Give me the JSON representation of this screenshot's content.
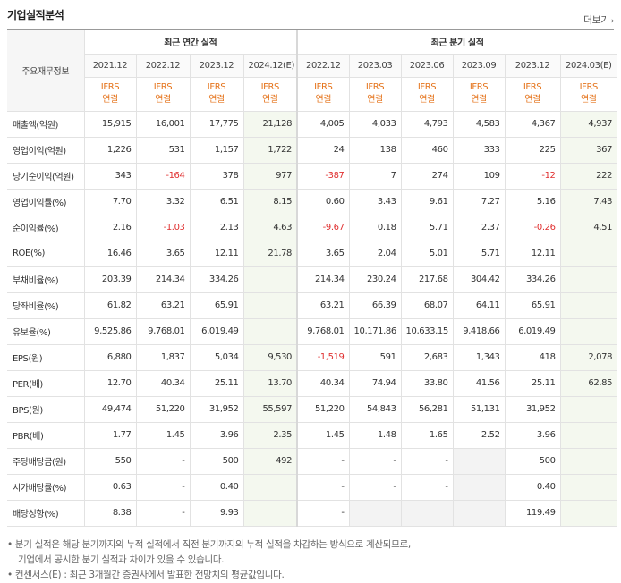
{
  "header": {
    "title": "기업실적분석",
    "more_label": "더보기",
    "more_arrow": "›"
  },
  "table": {
    "row_header_label": "주요재무정보",
    "annual_group": "최근 연간 실적",
    "quarter_group": "최근 분기 실적",
    "annual_periods": [
      "2021.12",
      "2022.12",
      "2023.12",
      "2024.12(E)"
    ],
    "quarter_periods": [
      "2022.12",
      "2023.03",
      "2023.06",
      "2023.09",
      "2023.12",
      "2024.03(E)"
    ],
    "ifrs_line1": "IFRS",
    "ifrs_line2": "연결",
    "rows": [
      {
        "label": "매출액(억원)",
        "values": [
          "15,915",
          "16,001",
          "17,775",
          "21,128",
          "4,005",
          "4,033",
          "4,793",
          "4,583",
          "4,367",
          "4,937"
        ]
      },
      {
        "label": "영업이익(억원)",
        "values": [
          "1,226",
          "531",
          "1,157",
          "1,722",
          "24",
          "138",
          "460",
          "333",
          "225",
          "367"
        ]
      },
      {
        "label": "당기순이익(억원)",
        "values": [
          "343",
          "-164",
          "378",
          "977",
          "-387",
          "7",
          "274",
          "109",
          "-12",
          "222"
        ]
      },
      {
        "label": "영업이익률(%)",
        "values": [
          "7.70",
          "3.32",
          "6.51",
          "8.15",
          "0.60",
          "3.43",
          "9.61",
          "7.27",
          "5.16",
          "7.43"
        ]
      },
      {
        "label": "순이익률(%)",
        "values": [
          "2.16",
          "-1.03",
          "2.13",
          "4.63",
          "-9.67",
          "0.18",
          "5.71",
          "2.37",
          "-0.26",
          "4.51"
        ]
      },
      {
        "label": "ROE(%)",
        "values": [
          "16.46",
          "3.65",
          "12.11",
          "21.78",
          "3.65",
          "2.04",
          "5.01",
          "5.71",
          "12.11",
          ""
        ]
      },
      {
        "label": "부채비율(%)",
        "values": [
          "203.39",
          "214.34",
          "334.26",
          "",
          "214.34",
          "230.24",
          "217.68",
          "304.42",
          "334.26",
          ""
        ]
      },
      {
        "label": "당좌비율(%)",
        "values": [
          "61.82",
          "63.21",
          "65.91",
          "",
          "63.21",
          "66.39",
          "68.07",
          "64.11",
          "65.91",
          ""
        ]
      },
      {
        "label": "유보율(%)",
        "values": [
          "9,525.86",
          "9,768.01",
          "6,019.49",
          "",
          "9,768.01",
          "10,171.86",
          "10,633.15",
          "9,418.66",
          "6,019.49",
          ""
        ]
      },
      {
        "label": "EPS(원)",
        "values": [
          "6,880",
          "1,837",
          "5,034",
          "9,530",
          "-1,519",
          "591",
          "2,683",
          "1,343",
          "418",
          "2,078"
        ]
      },
      {
        "label": "PER(배)",
        "values": [
          "12.70",
          "40.34",
          "25.11",
          "13.70",
          "40.34",
          "74.94",
          "33.80",
          "41.56",
          "25.11",
          "62.85"
        ]
      },
      {
        "label": "BPS(원)",
        "values": [
          "49,474",
          "51,220",
          "31,952",
          "55,597",
          "51,220",
          "54,843",
          "56,281",
          "51,131",
          "31,952",
          ""
        ]
      },
      {
        "label": "PBR(배)",
        "values": [
          "1.77",
          "1.45",
          "3.96",
          "2.35",
          "1.45",
          "1.48",
          "1.65",
          "2.52",
          "3.96",
          ""
        ]
      },
      {
        "label": "주당배당금(원)",
        "values": [
          "550",
          "-",
          "500",
          "492",
          "-",
          "-",
          "-",
          "",
          "500",
          ""
        ]
      },
      {
        "label": "시가배당률(%)",
        "values": [
          "0.63",
          "-",
          "0.40",
          "",
          "-",
          "-",
          "-",
          "",
          "0.40",
          ""
        ]
      },
      {
        "label": "배당성향(%)",
        "values": [
          "8.38",
          "-",
          "9.93",
          "",
          "-",
          "",
          "",
          "",
          "119.49",
          ""
        ]
      }
    ]
  },
  "notes": {
    "line1": "• 분기 실적은 해당 분기까지의 누적 실적에서 직전 분기까지의 누적 실적을 차감하는 방식으로 계산되므로,",
    "line2": "기업에서 공시한 분기 실적과 차이가 있을 수 있습니다.",
    "line3": "• 컨센서스(E) : 최근 3개월간 증권사에서 발표한 전망치의 평균값입니다."
  }
}
